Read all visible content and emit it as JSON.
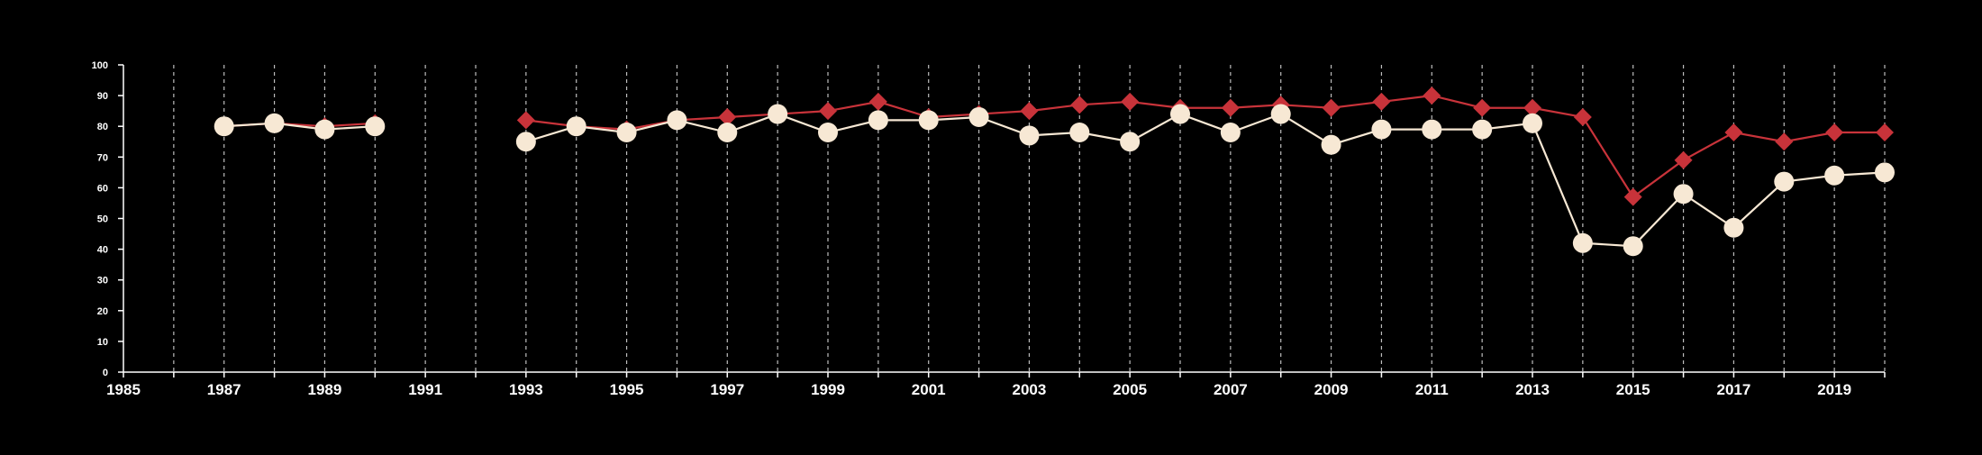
{
  "chart_data": {
    "type": "line",
    "title": "",
    "xlabel": "",
    "ylabel": "",
    "xlim": [
      1985,
      2020
    ],
    "ylim": [
      0,
      100
    ],
    "y_ticks": [
      0,
      10,
      20,
      30,
      40,
      50,
      60,
      70,
      80,
      90,
      100
    ],
    "x_ticks": [
      1985,
      1987,
      1989,
      1991,
      1993,
      1995,
      1997,
      1999,
      2001,
      2003,
      2005,
      2007,
      2009,
      2011,
      2013,
      2015,
      2017,
      2019
    ],
    "grid": "vertical dashed lines at each year",
    "legend": "none",
    "background_color": "#000000",
    "series": [
      {
        "color": "#c8333a",
        "marker": "diamond",
        "points": [
          [
            1987,
            80
          ],
          [
            1988,
            81
          ],
          [
            1989,
            80
          ],
          [
            1990,
            81
          ],
          [
            1993,
            82
          ],
          [
            1994,
            80
          ],
          [
            1995,
            79
          ],
          [
            1996,
            82
          ],
          [
            1997,
            83
          ],
          [
            1998,
            84
          ],
          [
            1999,
            85
          ],
          [
            2000,
            88
          ],
          [
            2001,
            83
          ],
          [
            2002,
            84
          ],
          [
            2003,
            85
          ],
          [
            2004,
            87
          ],
          [
            2005,
            88
          ],
          [
            2006,
            86
          ],
          [
            2007,
            86
          ],
          [
            2008,
            87
          ],
          [
            2009,
            86
          ],
          [
            2010,
            88
          ],
          [
            2011,
            90
          ],
          [
            2012,
            86
          ],
          [
            2013,
            86
          ],
          [
            2014,
            83
          ],
          [
            2015,
            57
          ],
          [
            2016,
            69
          ],
          [
            2017,
            78
          ],
          [
            2018,
            75
          ],
          [
            2019,
            78
          ],
          [
            2020,
            78
          ]
        ]
      },
      {
        "color": "#f7e8d4",
        "marker": "circle",
        "points": [
          [
            1987,
            80
          ],
          [
            1988,
            81
          ],
          [
            1989,
            79
          ],
          [
            1990,
            80
          ],
          [
            1993,
            75
          ],
          [
            1994,
            80
          ],
          [
            1995,
            78
          ],
          [
            1996,
            82
          ],
          [
            1997,
            78
          ],
          [
            1998,
            84
          ],
          [
            1999,
            78
          ],
          [
            2000,
            82
          ],
          [
            2001,
            82
          ],
          [
            2002,
            83
          ],
          [
            2003,
            77
          ],
          [
            2004,
            78
          ],
          [
            2005,
            75
          ],
          [
            2006,
            84
          ],
          [
            2007,
            78
          ],
          [
            2008,
            84
          ],
          [
            2009,
            74
          ],
          [
            2010,
            79
          ],
          [
            2011,
            79
          ],
          [
            2012,
            79
          ],
          [
            2013,
            81
          ],
          [
            2014,
            42
          ],
          [
            2015,
            41
          ],
          [
            2016,
            58
          ],
          [
            2017,
            47
          ],
          [
            2018,
            62
          ],
          [
            2019,
            64
          ],
          [
            2020,
            65
          ]
        ]
      }
    ]
  }
}
